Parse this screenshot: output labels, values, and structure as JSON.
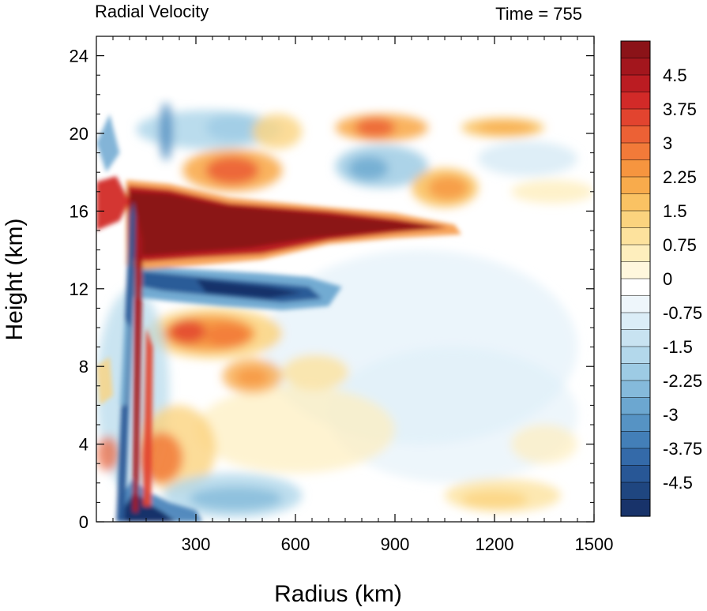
{
  "chart_data": {
    "type": "heatmap",
    "title_left": "Radial Velocity",
    "title_right": "Time = 755",
    "xlabel": "Radius (km)",
    "ylabel": "Height (km)",
    "xlim": [
      0,
      1500
    ],
    "ylim": [
      0,
      25
    ],
    "x_ticks": [
      "300",
      "600",
      "900",
      "1200",
      "1500"
    ],
    "x_tick_values": [
      300,
      600,
      900,
      1200,
      1500
    ],
    "y_ticks": [
      "0",
      "4",
      "8",
      "12",
      "16",
      "20",
      "24"
    ],
    "y_tick_values": [
      0,
      4,
      8,
      12,
      16,
      20,
      24
    ],
    "colorbar": {
      "min": -5.25,
      "max": 5.25,
      "step": 0.25,
      "tick_labels": [
        "4.5",
        "3.75",
        "3",
        "2.25",
        "1.5",
        "0.75",
        "0",
        "-0.75",
        "-1.5",
        "-2.25",
        "-3",
        "-3.75",
        "-4.5"
      ],
      "tick_values": [
        4.5,
        3.75,
        3,
        2.25,
        1.5,
        0.75,
        0,
        -0.75,
        -1.5,
        -2.25,
        -3,
        -3.75,
        -4.5
      ],
      "colors_high_to_low": [
        "#8b1318",
        "#a3161d",
        "#bb1c22",
        "#d22a28",
        "#e2442f",
        "#ec6135",
        "#f27a39",
        "#f6953f",
        "#f8ab4c",
        "#fac263",
        "#fbd37e",
        "#fde29d",
        "#feeebd",
        "#fff7dd",
        "#ffffff",
        "#eef6fb",
        "#dbedf7",
        "#c8e3f1",
        "#b3d8eb",
        "#9dcbe4",
        "#85badb",
        "#6ca7d0",
        "#5693c4",
        "#437fb8",
        "#346aa9",
        "#285796",
        "#1f4680",
        "#18336a"
      ]
    },
    "features": [
      {
        "name": "upper-level outflow jet",
        "value": 5.5,
        "r": [
          80,
          1060
        ],
        "z": [
          13.5,
          16.5
        ]
      },
      {
        "name": "mid-level inflow",
        "value": -4.5,
        "r": [
          120,
          720
        ],
        "z": [
          11,
          13
        ]
      },
      {
        "name": "low-level inflow",
        "value": -5,
        "r": [
          60,
          300
        ],
        "z": [
          0,
          1.5
        ]
      },
      {
        "name": "upper outflow layer",
        "value": 3,
        "r": [
          300,
          1400
        ],
        "z": [
          18,
          21
        ]
      },
      {
        "name": "mid-level outflow",
        "value": 3,
        "r": [
          180,
          520
        ],
        "z": [
          8.5,
          10.5
        ]
      }
    ]
  }
}
